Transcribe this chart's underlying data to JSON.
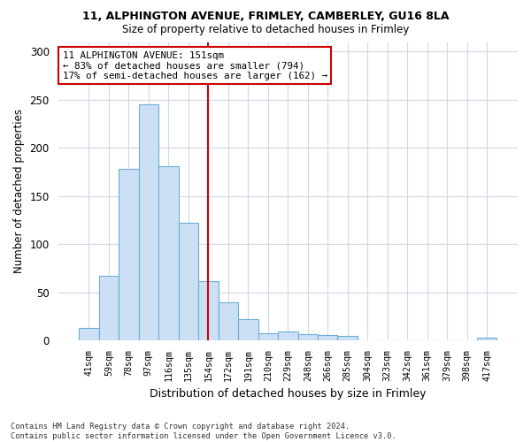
{
  "title1": "11, ALPHINGTON AVENUE, FRIMLEY, CAMBERLEY, GU16 8LA",
  "title2": "Size of property relative to detached houses in Frimley",
  "xlabel": "Distribution of detached houses by size in Frimley",
  "ylabel": "Number of detached properties",
  "bin_labels": [
    "41sqm",
    "59sqm",
    "78sqm",
    "97sqm",
    "116sqm",
    "135sqm",
    "154sqm",
    "172sqm",
    "191sqm",
    "210sqm",
    "229sqm",
    "248sqm",
    "266sqm",
    "285sqm",
    "304sqm",
    "323sqm",
    "342sqm",
    "361sqm",
    "379sqm",
    "398sqm",
    "417sqm"
  ],
  "bar_values": [
    13,
    67,
    178,
    245,
    181,
    122,
    62,
    40,
    22,
    8,
    10,
    7,
    6,
    5,
    0,
    0,
    0,
    0,
    0,
    0,
    3
  ],
  "bar_color": "#cce0f5",
  "bar_edge_color": "#6baed6",
  "vline_x": 6.0,
  "vline_color": "#cc0000",
  "annotation_text": "11 ALPHINGTON AVENUE: 151sqm\n← 83% of detached houses are smaller (794)\n17% of semi-detached houses are larger (162) →",
  "annotation_box_color": "#ffffff",
  "annotation_box_edge": "#cc0000",
  "ylim": [
    0,
    310
  ],
  "yticks": [
    0,
    50,
    100,
    150,
    200,
    250,
    300
  ],
  "footnote": "Contains HM Land Registry data © Crown copyright and database right 2024.\nContains public sector information licensed under the Open Government Licence v3.0.",
  "bg_color": "#ffffff",
  "plot_bg_color": "#ffffff",
  "grid_color": "#d0d8e8"
}
